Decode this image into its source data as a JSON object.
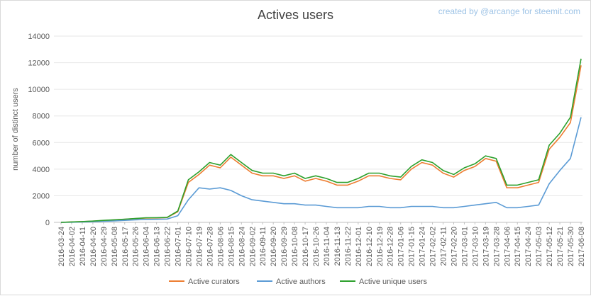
{
  "header": {
    "title": "Actives users",
    "credit": "created by @arcange for steemit.com"
  },
  "chart_data": {
    "type": "line",
    "title": "Actives users",
    "xlabel": "",
    "ylabel": "number of distinct users",
    "ylim": [
      0,
      14000
    ],
    "yticks": [
      0,
      2000,
      4000,
      6000,
      8000,
      10000,
      12000,
      14000
    ],
    "grid": true,
    "legend": "bottom",
    "categories": [
      "2016-03-24",
      "2016-04-02",
      "2016-04-11",
      "2016-04-20",
      "2016-04-29",
      "2016-05-08",
      "2016-05-17",
      "2016-05-26",
      "2016-06-04",
      "2016-06-13",
      "2016-06-22",
      "2016-07-01",
      "2016-07-10",
      "2016-07-19",
      "2016-07-28",
      "2016-08-06",
      "2016-08-15",
      "2016-08-24",
      "2016-09-02",
      "2016-09-11",
      "2016-09-20",
      "2016-09-29",
      "2016-10-08",
      "2016-10-17",
      "2016-10-26",
      "2016-11-04",
      "2016-11-13",
      "2016-11-22",
      "2016-12-01",
      "2016-12-10",
      "2016-12-19",
      "2016-12-28",
      "2017-01-06",
      "2017-01-15",
      "2017-01-24",
      "2017-02-02",
      "2017-02-11",
      "2017-02-20",
      "2017-03-01",
      "2017-03-10",
      "2017-03-19",
      "2017-03-28",
      "2017-04-06",
      "2017-04-15",
      "2017-04-24",
      "2017-05-03",
      "2017-05-12",
      "2017-05-21",
      "2017-05-30",
      "2017-06-08"
    ],
    "series": [
      {
        "name": "Active curators",
        "color": "#ed7d31",
        "values": [
          0,
          30,
          60,
          90,
          140,
          180,
          230,
          280,
          320,
          330,
          360,
          800,
          3000,
          3600,
          4300,
          4100,
          4900,
          4300,
          3700,
          3500,
          3500,
          3300,
          3500,
          3100,
          3300,
          3100,
          2800,
          2800,
          3100,
          3500,
          3500,
          3300,
          3200,
          4000,
          4500,
          4300,
          3700,
          3400,
          3900,
          4200,
          4800,
          4600,
          2600,
          2600,
          2800,
          3000,
          5500,
          6400,
          7500,
          11800
        ]
      },
      {
        "name": "Active authors",
        "color": "#5b9bd5",
        "values": [
          0,
          10,
          30,
          50,
          80,
          110,
          150,
          190,
          220,
          230,
          250,
          500,
          1700,
          2600,
          2500,
          2600,
          2400,
          2000,
          1700,
          1600,
          1500,
          1400,
          1400,
          1300,
          1300,
          1200,
          1100,
          1100,
          1100,
          1200,
          1200,
          1100,
          1100,
          1200,
          1200,
          1200,
          1100,
          1100,
          1200,
          1300,
          1400,
          1500,
          1100,
          1100,
          1200,
          1300,
          2900,
          3900,
          4800,
          7900
        ]
      },
      {
        "name": "Active unique users",
        "color": "#2ca02c",
        "values": [
          0,
          30,
          60,
          95,
          150,
          190,
          240,
          290,
          340,
          350,
          380,
          850,
          3200,
          3800,
          4500,
          4300,
          5100,
          4500,
          3900,
          3700,
          3700,
          3500,
          3700,
          3300,
          3500,
          3300,
          3000,
          3000,
          3300,
          3700,
          3700,
          3500,
          3400,
          4200,
          4700,
          4500,
          3900,
          3600,
          4100,
          4400,
          5000,
          4800,
          2800,
          2800,
          3000,
          3200,
          5800,
          6700,
          7900,
          12300
        ]
      }
    ]
  }
}
